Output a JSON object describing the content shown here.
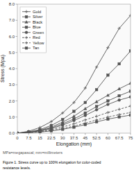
{
  "chart_data": {
    "type": "line",
    "x_label": "Elongation (mm)",
    "y_label": "Stress (Mpa)",
    "caption": "MPa=megapascal; mm=millimeters",
    "figure_caption": "Figure 1.  Stress curve up to 100% elongation for color-coded\nresistance levels.",
    "x": [
      0,
      7.5,
      15,
      22.5,
      30,
      37.5,
      45,
      52.5,
      60,
      67.5,
      75
    ],
    "series": [
      {
        "name": "Gold",
        "color": "#555555",
        "marker": "plus",
        "line_style": "solid",
        "values": [
          0,
          0.12,
          0.35,
          0.72,
          1.25,
          1.9,
          2.8,
          4.1,
          5.3,
          6.5,
          7.3
        ]
      },
      {
        "name": "Silver",
        "color": "#555555",
        "marker": "square",
        "line_style": "solid",
        "values": [
          0,
          0.08,
          0.22,
          0.48,
          0.85,
          1.35,
          1.9,
          2.7,
          3.6,
          4.3,
          5.1
        ]
      },
      {
        "name": "Black",
        "color": "#555555",
        "marker": "triangle",
        "line_style": "solid",
        "values": [
          0,
          0.06,
          0.18,
          0.38,
          0.68,
          1.05,
          1.52,
          1.95,
          2.35,
          2.75,
          3.1
        ]
      },
      {
        "name": "Blue",
        "color": "#555555",
        "marker": "square",
        "line_style": "solid",
        "values": [
          0,
          0.06,
          0.16,
          0.32,
          0.58,
          0.88,
          1.25,
          1.65,
          2.0,
          2.32,
          2.6
        ]
      },
      {
        "name": "Green",
        "color": "#555555",
        "marker": "circle",
        "line_style": "solid",
        "values": [
          0,
          0.05,
          0.14,
          0.28,
          0.5,
          0.78,
          1.1,
          1.45,
          1.78,
          2.05,
          2.25
        ]
      },
      {
        "name": "Red",
        "color": "#555555",
        "marker": "plus",
        "line_style": "dashed",
        "values": [
          0,
          0.04,
          0.11,
          0.22,
          0.38,
          0.58,
          0.82,
          1.05,
          1.28,
          1.48,
          1.68
        ]
      },
      {
        "name": "Yellow",
        "color": "#555555",
        "marker": "plus",
        "line_style": "dashed",
        "values": [
          0,
          0.03,
          0.08,
          0.16,
          0.28,
          0.44,
          0.62,
          0.82,
          1.0,
          1.15,
          1.28
        ]
      },
      {
        "name": "Tan",
        "color": "#555555",
        "marker": "square",
        "line_style": "solid",
        "values": [
          0,
          0.03,
          0.07,
          0.14,
          0.24,
          0.37,
          0.53,
          0.7,
          0.87,
          1.0,
          1.12
        ]
      }
    ],
    "xlim": [
      0,
      75
    ],
    "ylim": [
      0,
      8.0
    ],
    "xticks": [
      0,
      7.5,
      15,
      22.5,
      30,
      37.5,
      45,
      52.5,
      60,
      67.5,
      75
    ],
    "yticks": [
      {
        "value": 0.0,
        "label": "0.0"
      },
      {
        "value": 1.0,
        "label": "1.0"
      },
      {
        "value": 2.0,
        "label": "2.0"
      },
      {
        "value": 3.0,
        "label": "3.0"
      },
      {
        "value": 4.0,
        "label": "4.0"
      },
      {
        "value": 5.0,
        "label": "5.0"
      },
      {
        "value": 6.0,
        "label": "6.0"
      },
      {
        "value": 7.0,
        "label": "7.0"
      },
      {
        "value": 8.0,
        "label": "8.0"
      }
    ],
    "grid": false,
    "legend": "upper left"
  }
}
